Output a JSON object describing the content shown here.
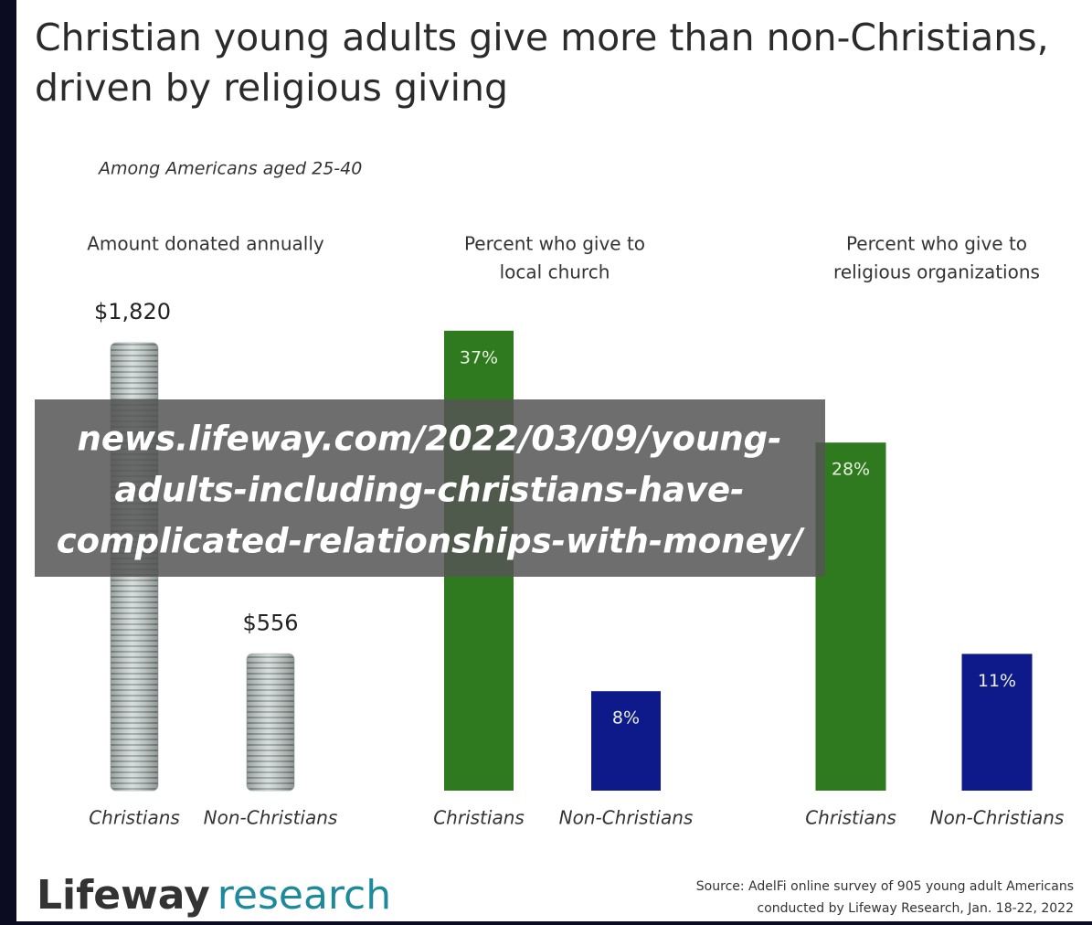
{
  "title": [
    "Christian young adults give more than non-Christians,",
    "driven by religious giving"
  ],
  "subtitle": "Among Americans aged 25-40",
  "overlay_lines": [
    "news.lifeway.com/2022/03/09/young-",
    "adults-including-christians-have-",
    "complicated-relationships-with-money/"
  ],
  "source": [
    "Source: AdelFi online survey of 905 young adult Americans",
    "conducted by Lifeway Research, Jan. 18-22, 2022"
  ],
  "logo": {
    "brand": "Lifeway",
    "word": "research"
  },
  "chart_data": [
    {
      "type": "bar",
      "title": [
        "Amount donated annually"
      ],
      "categories": [
        "Christians",
        "Non-Christians"
      ],
      "values": [
        1820,
        556
      ],
      "value_labels": [
        "$1,820",
        "$556"
      ],
      "mark_style": "coins",
      "colors": [
        "#b9c6c4",
        "#b9c6c4"
      ],
      "label_position": "above"
    },
    {
      "type": "bar",
      "title": [
        "Percent who give to",
        "local church"
      ],
      "categories": [
        "Christians",
        "Non-Christians"
      ],
      "values": [
        37,
        8
      ],
      "value_labels": [
        "37%",
        "8%"
      ],
      "mark_style": "solid",
      "colors": [
        "#2f7a1e",
        "#0e1a8a"
      ],
      "label_position": "inside"
    },
    {
      "type": "bar",
      "title": [
        "Percent who give to",
        "religious organizations"
      ],
      "categories": [
        "Christians",
        "Non-Christians"
      ],
      "values": [
        28,
        11
      ],
      "value_labels": [
        "28%",
        "11%"
      ],
      "mark_style": "solid",
      "colors": [
        "#2f7a1e",
        "#0e1a8a"
      ],
      "label_position": "inside"
    }
  ]
}
